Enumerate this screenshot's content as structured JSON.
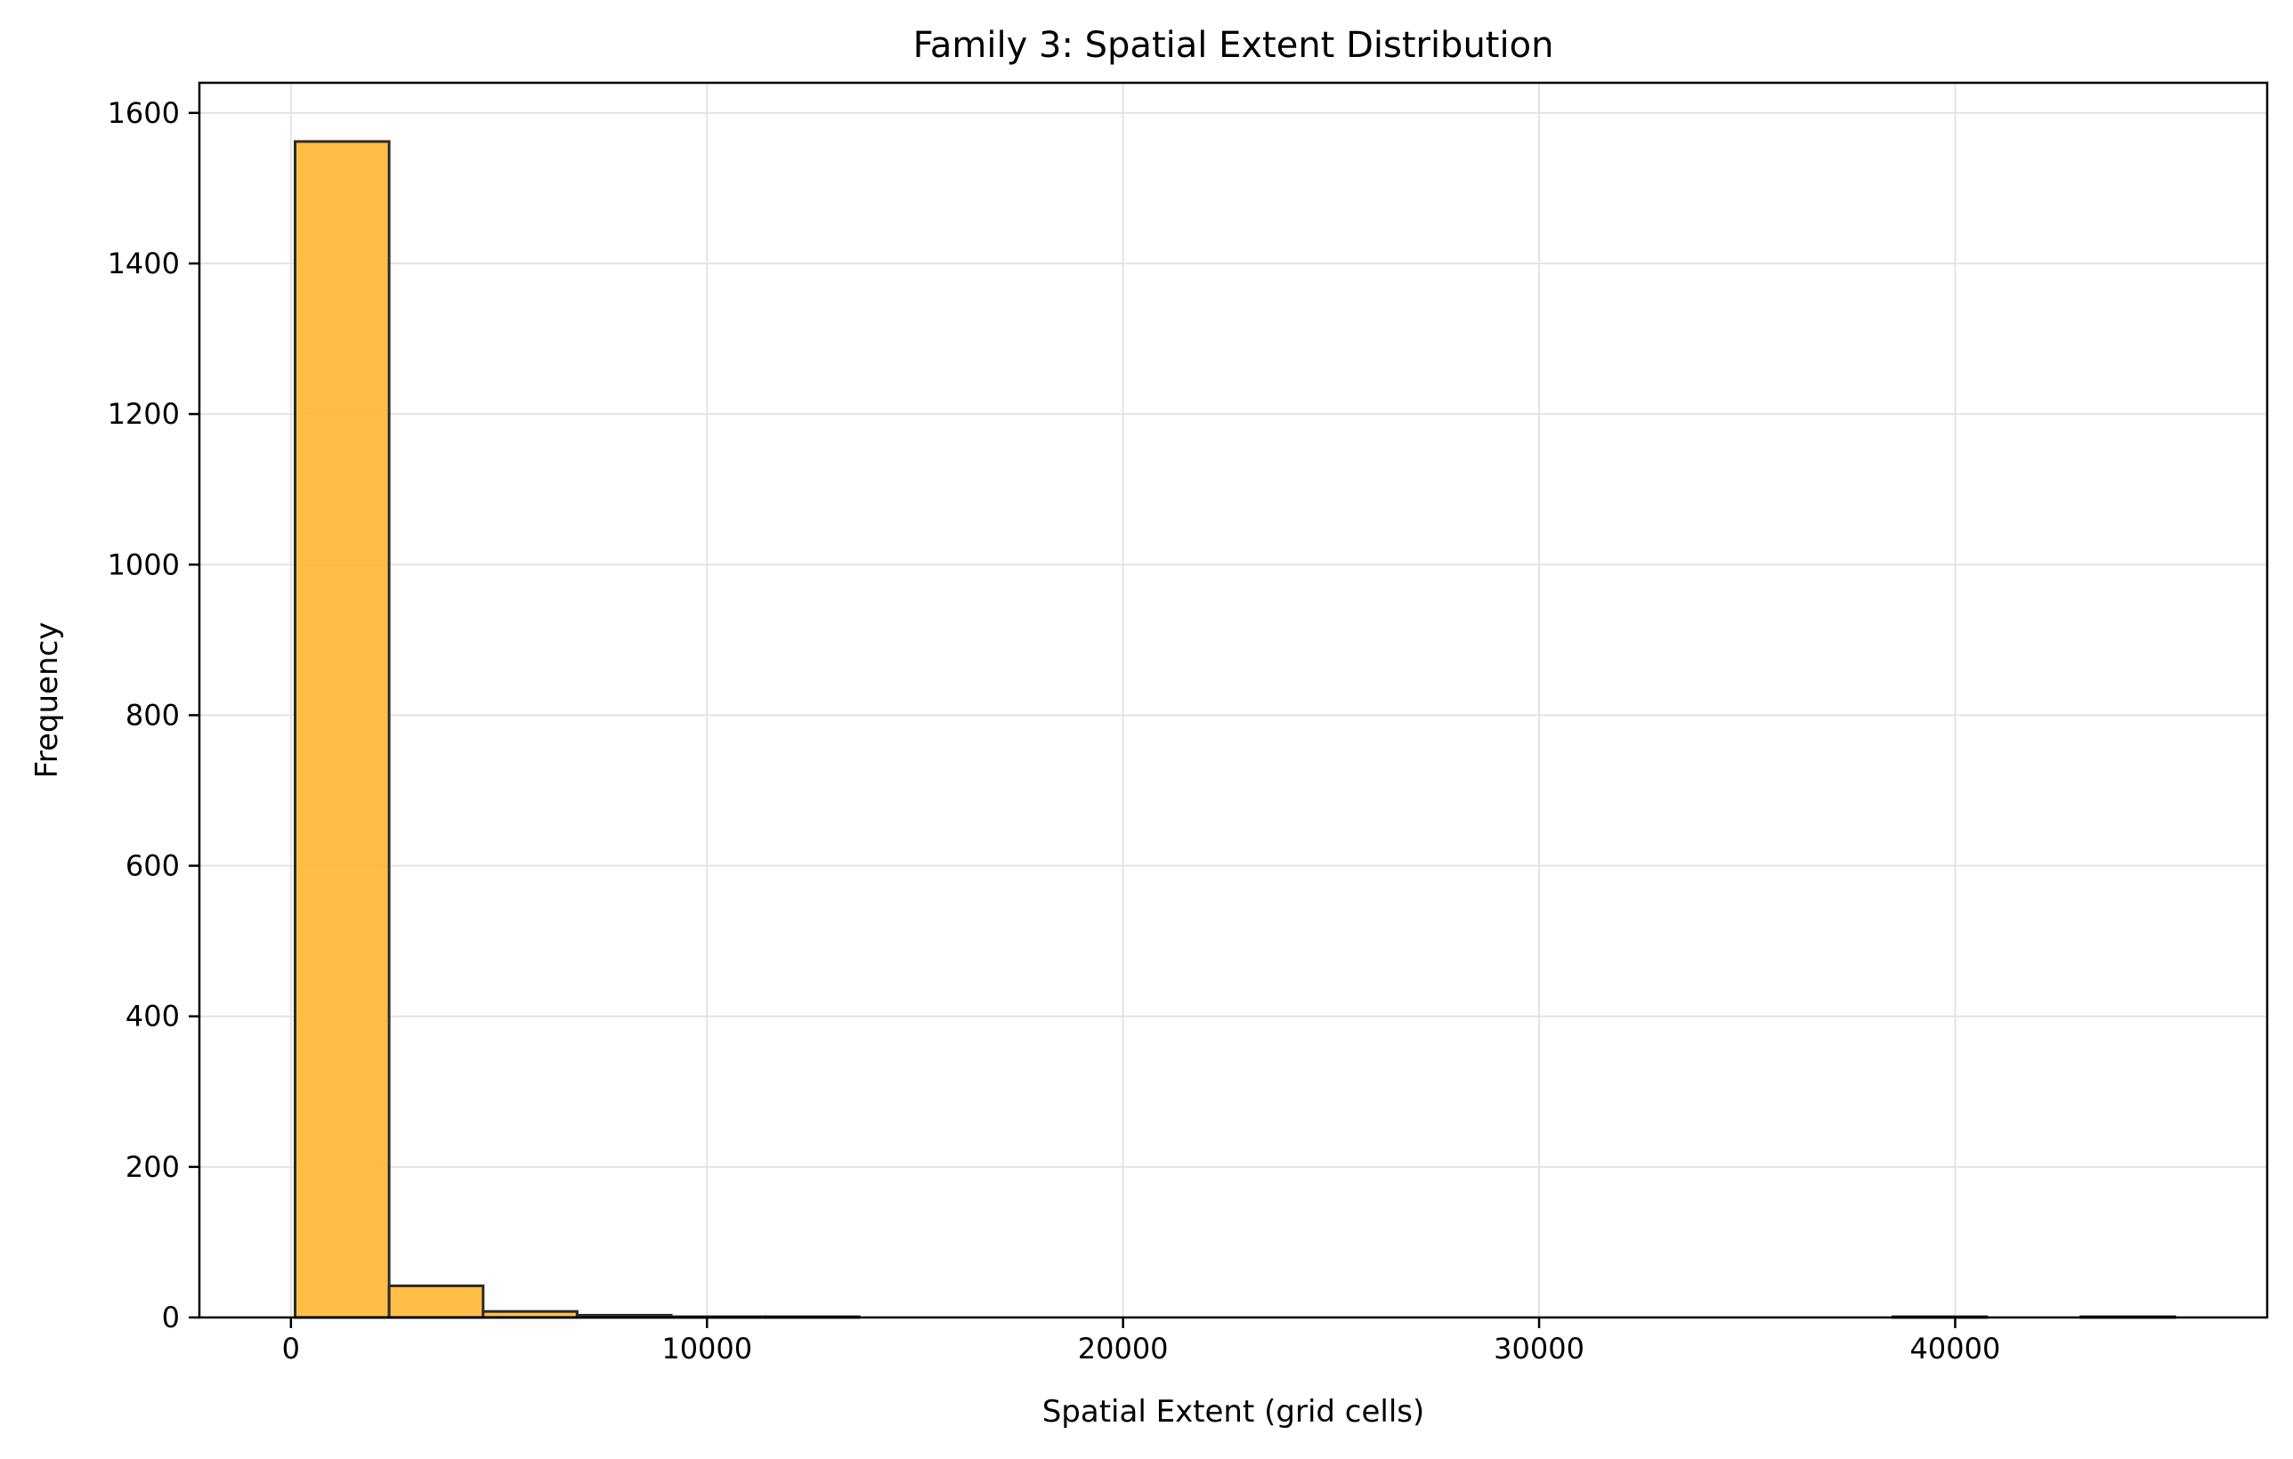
{
  "chart_data": {
    "type": "bar",
    "subtype": "histogram",
    "title": "Family 3: Spatial Extent Distribution",
    "xlabel": "Spatial Extent (grid cells)",
    "ylabel": "Frequency",
    "xlim": [
      -2200,
      47500
    ],
    "ylim": [
      0,
      1640
    ],
    "xticks": [
      0,
      10000,
      20000,
      30000,
      40000
    ],
    "yticks": [
      0,
      200,
      400,
      600,
      800,
      1000,
      1200,
      1400,
      1600
    ],
    "grid": true,
    "legend": "none",
    "bar_color": "#FFB62E",
    "bar_edge_color": "#2b2b2b",
    "bins": [
      {
        "x0": 100,
        "x1": 2360,
        "value": 1562
      },
      {
        "x0": 2360,
        "x1": 4620,
        "value": 42
      },
      {
        "x0": 4620,
        "x1": 6880,
        "value": 8
      },
      {
        "x0": 6880,
        "x1": 9140,
        "value": 3
      },
      {
        "x0": 9140,
        "x1": 11400,
        "value": 1
      },
      {
        "x0": 11400,
        "x1": 13660,
        "value": 1
      },
      {
        "x0": 38500,
        "x1": 40760,
        "value": 1
      },
      {
        "x0": 43020,
        "x1": 45280,
        "value": 1
      }
    ]
  }
}
